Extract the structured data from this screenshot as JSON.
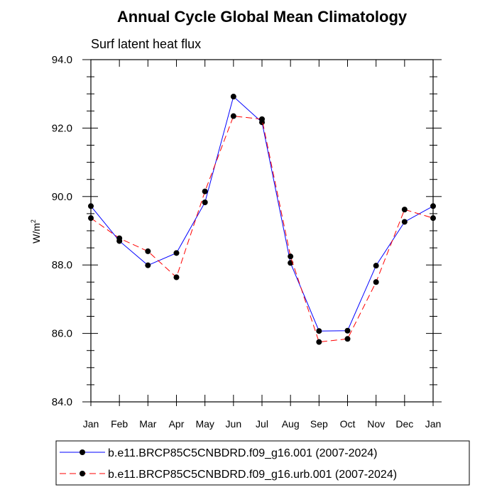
{
  "chart_data": {
    "type": "line",
    "title": "Annual Cycle Global Mean Climatology",
    "subtitle": "Surf latent heat flux",
    "ylabel": "W/m",
    "ylabel_superscript": "2",
    "xlabel": "",
    "categories": [
      "Jan",
      "Feb",
      "Mar",
      "Apr",
      "May",
      "Jun",
      "Jul",
      "Aug",
      "Sep",
      "Oct",
      "Nov",
      "Dec",
      "Jan"
    ],
    "ylim": [
      84.0,
      94.0
    ],
    "yticks": [
      84.0,
      86.0,
      88.0,
      90.0,
      92.0,
      94.0
    ],
    "ytick_labels": [
      "84.0",
      "86.0",
      "88.0",
      "90.0",
      "92.0",
      "94.0"
    ],
    "grid": false,
    "legend_position": "bottom",
    "series": [
      {
        "name": "b.e11.BRCP85C5CNBDRD.f09_g16.001 (2007-2024)",
        "color": "#0000ff",
        "line_style": "solid",
        "values": [
          89.72,
          88.7,
          87.99,
          88.35,
          89.83,
          92.92,
          92.17,
          88.06,
          86.07,
          86.08,
          87.98,
          89.26,
          89.72
        ]
      },
      {
        "name": "b.e11.BRCP85C5CNBDRD.f09_g16.urb.001 (2007-2024)",
        "color": "#ff0000",
        "line_style": "dashed",
        "values": [
          89.37,
          88.78,
          88.4,
          87.64,
          90.15,
          92.35,
          92.26,
          88.25,
          85.75,
          85.84,
          87.5,
          89.62,
          89.37
        ]
      }
    ]
  }
}
